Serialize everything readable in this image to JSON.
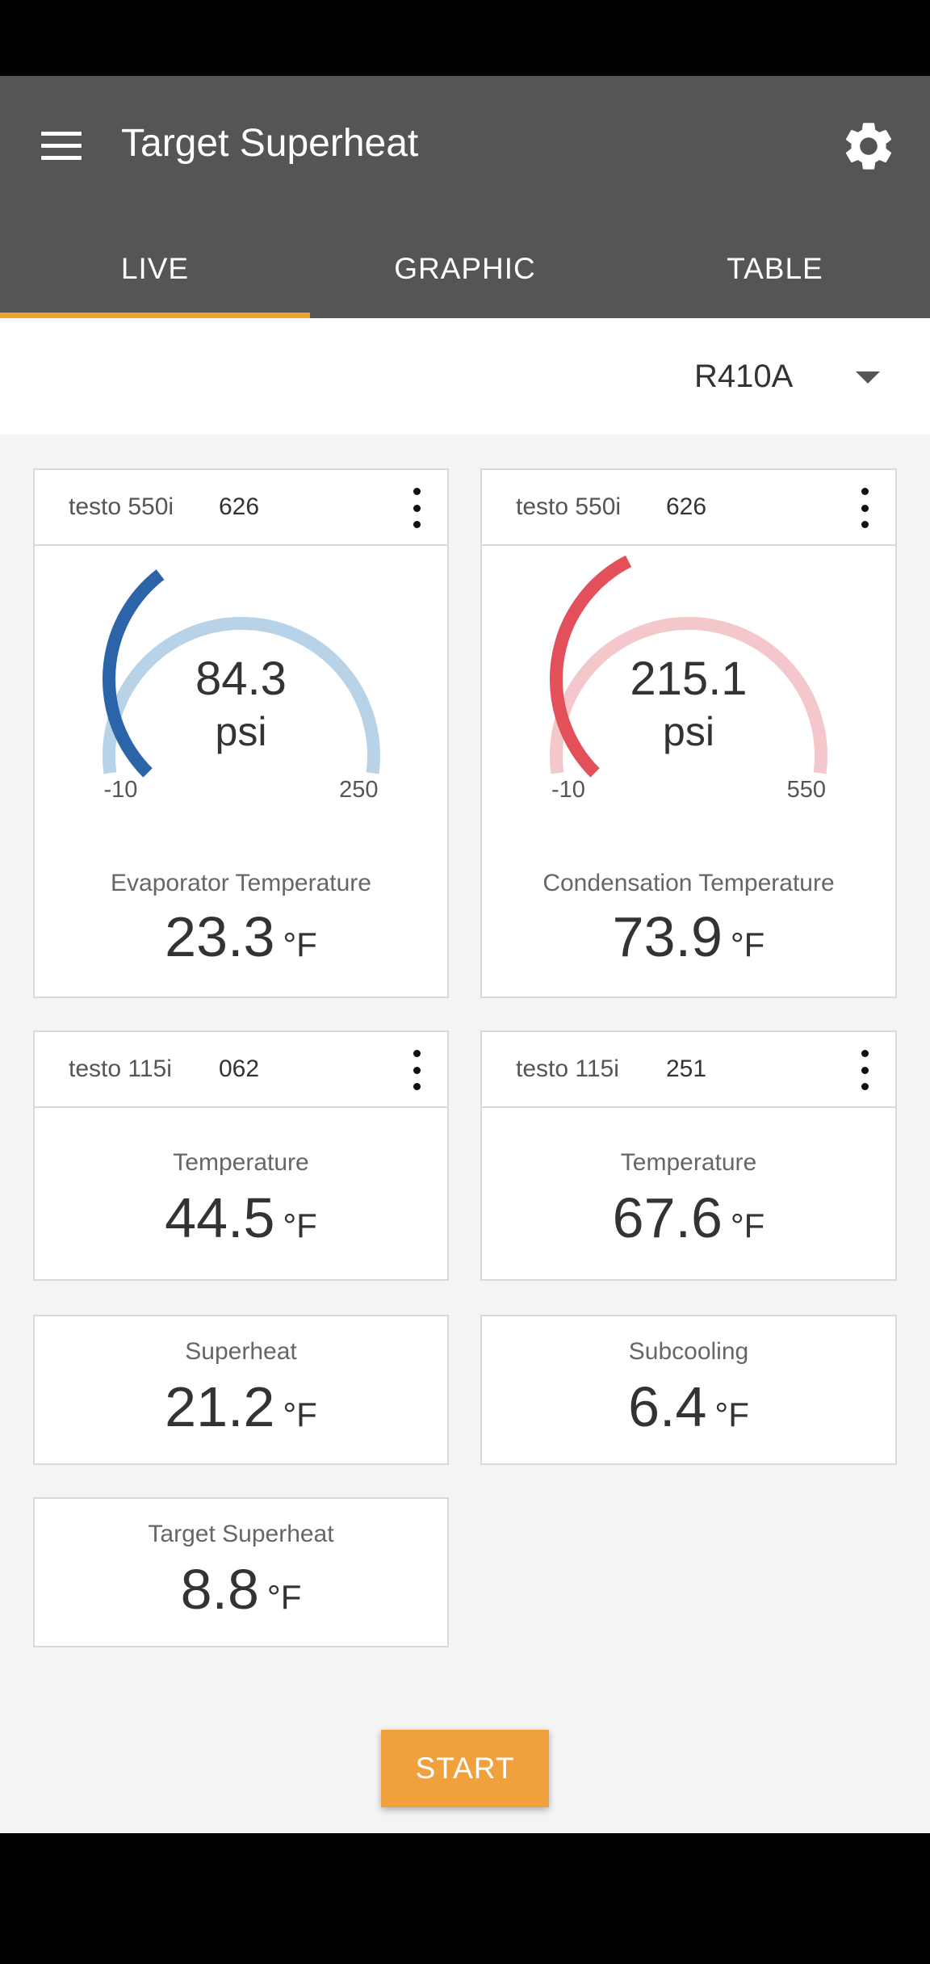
{
  "app": {
    "title": "Target Superheat"
  },
  "tabs": [
    {
      "label": "LIVE",
      "active": true
    },
    {
      "label": "GRAPHIC",
      "active": false
    },
    {
      "label": "TABLE",
      "active": false
    }
  ],
  "refrigerant": {
    "selected": "R410A"
  },
  "colors": {
    "accent": "#f0a030",
    "app_bar": "#555555",
    "low_gauge": "#2b64a8",
    "low_gauge_track": "#b8d3e8",
    "high_gauge": "#e4505a",
    "high_gauge_track": "#f4c8cb",
    "start_button": "#f0a03c"
  },
  "cards": {
    "low_pressure": {
      "probe_name": "testo 550i",
      "probe_serial": "626",
      "gauge": {
        "value": "84.3",
        "unit": "psi",
        "min": "-10",
        "max": "250",
        "fill_fraction": 0.36
      },
      "label": "Evaporator Temperature",
      "value": "23.3",
      "unit": "°F"
    },
    "high_pressure": {
      "probe_name": "testo 550i",
      "probe_serial": "626",
      "gauge": {
        "value": "215.1",
        "unit": "psi",
        "min": "-10",
        "max": "550",
        "fill_fraction": 0.4
      },
      "label": "Condensation Temperature",
      "value": "73.9",
      "unit": "°F"
    },
    "temp_1": {
      "probe_name": "testo 115i",
      "probe_serial": "062",
      "label": "Temperature",
      "value": "44.5",
      "unit": "°F"
    },
    "temp_2": {
      "probe_name": "testo 115i",
      "probe_serial": "251",
      "label": "Temperature",
      "value": "67.6",
      "unit": "°F"
    },
    "superheat": {
      "label": "Superheat",
      "value": "21.2",
      "unit": "°F"
    },
    "subcooling": {
      "label": "Subcooling",
      "value": "6.4",
      "unit": "°F"
    },
    "target_superheat": {
      "label": "Target Superheat",
      "value": "8.8",
      "unit": "°F"
    }
  },
  "start_button": {
    "label": "START"
  }
}
